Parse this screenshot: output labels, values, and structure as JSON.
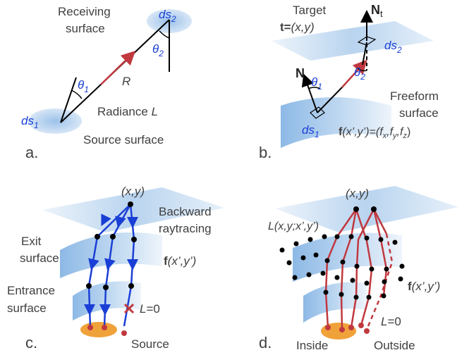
{
  "colors": {
    "surface_light": "#dbe8f6",
    "surface_mid": "#a8c8ea",
    "surface_dark": "#7fb0e0",
    "ray_red": "#c0393f",
    "ray_blue": "#1a3fd6",
    "source_orange": "#f0a23a",
    "text_gray": "#404040",
    "text_blue": "#1a3fd6",
    "black": "#000000"
  },
  "panel_a": {
    "letter": "a.",
    "receiving_line1": "Receiving",
    "receiving_line2": "surface",
    "ds2": "ds",
    "ds2_sub": "2",
    "theta2": "θ",
    "theta2_sub": "2",
    "theta1": "θ",
    "theta1_sub": "1",
    "R": "R",
    "radiance": "Radiance ",
    "radiance_L": "L",
    "ds1": "ds",
    "ds1_sub": "1",
    "source_surface": "Source surface"
  },
  "panel_b": {
    "letter": "b.",
    "target": "Target",
    "t_eq": "t=",
    "t_xy": "(x,y)",
    "Nt": "N",
    "Nt_sub": "t",
    "ds2": "ds",
    "ds2_sub": "2",
    "N": "N",
    "theta1": "θ",
    "theta1_sub": "1",
    "theta2": "θ",
    "theta2_sub": "2",
    "freeform_line1": "Freeform",
    "freeform_line2": "surface",
    "ds1": "ds",
    "ds1_sub": "1",
    "f_eq_lhs": "f",
    "f_eq_args": "(x’,y’)=(f",
    "fx_sub": "x",
    "f_comma1": ",f",
    "fy_sub": "y",
    "f_comma2": ",f",
    "fz_sub": "z",
    "f_close": ")"
  },
  "panel_c": {
    "letter": "c.",
    "xy": "(x,y)",
    "backward_line1": "Backward",
    "backward_line2": "raytracing",
    "exit_line1": "Exit",
    "exit_line2": "surface",
    "f_label": "f",
    "f_args": "(x’,y’)",
    "entrance_line1": "Entrance",
    "entrance_line2": "surface",
    "L0": "L",
    "L0_eq": "=0",
    "source": "Source"
  },
  "panel_d": {
    "letter": "d.",
    "xy": "(x,y)",
    "L_label": "L",
    "L_args": "(x,y;x’,y’)",
    "f_label": "f",
    "f_args": "(x’,y’)",
    "L0": "L",
    "L0_eq": "=0",
    "inside": "Inside",
    "outside": "Outside"
  }
}
